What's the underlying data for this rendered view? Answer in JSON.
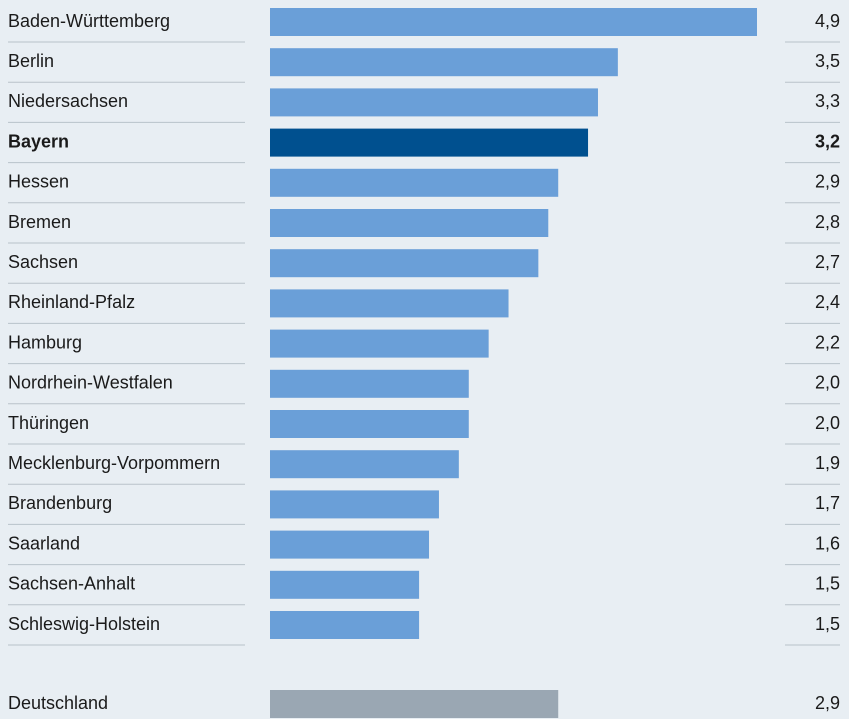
{
  "chart_data": {
    "type": "bar",
    "orientation": "horizontal",
    "categories": [
      "Baden-Württemberg",
      "Berlin",
      "Niedersachsen",
      "Bayern",
      "Hessen",
      "Bremen",
      "Sachsen",
      "Rheinland-Pfalz",
      "Hamburg",
      "Nordrhein-Westfalen",
      "Thüringen",
      "Mecklenburg-Vorpommern",
      "Brandenburg",
      "Saarland",
      "Sachsen-Anhalt",
      "Schleswig-Holstein"
    ],
    "values": [
      4.9,
      3.5,
      3.3,
      3.2,
      2.9,
      2.8,
      2.7,
      2.4,
      2.2,
      2.0,
      2.0,
      1.9,
      1.7,
      1.6,
      1.5,
      1.5
    ],
    "value_labels": [
      "4,9",
      "3,5",
      "3,3",
      "3,2",
      "2,9",
      "2,8",
      "2,7",
      "2,4",
      "2,2",
      "2,0",
      "2,0",
      "1,9",
      "1,7",
      "1,6",
      "1,5",
      "1,5"
    ],
    "color": "#6a9fd8",
    "highlight": "Bayern",
    "highlight_color": "#00508f",
    "total": {
      "category": "Deutschland",
      "value": 2.9,
      "value_label": "2,9",
      "color": "#9aa7b3"
    }
  }
}
